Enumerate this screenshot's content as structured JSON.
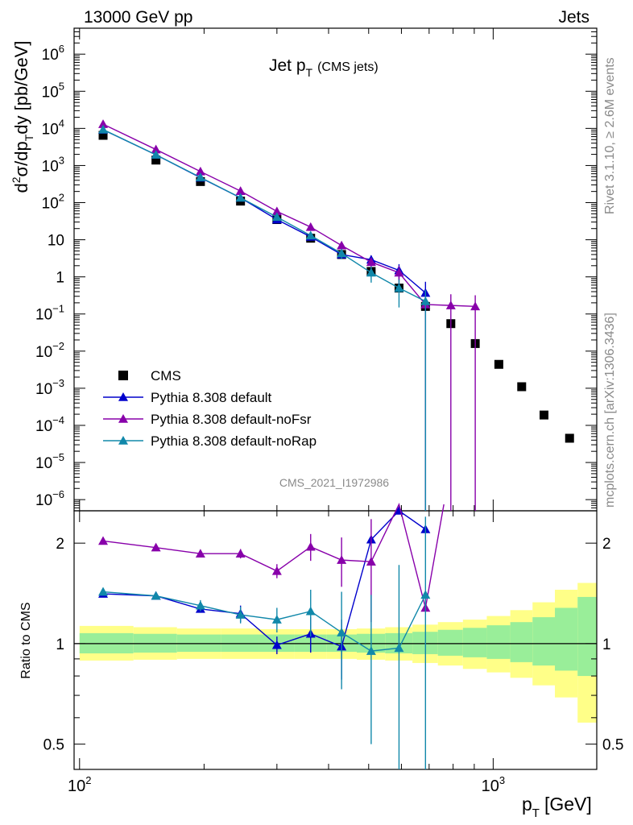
{
  "header": {
    "left": "13000 GeV pp",
    "right": "Jets"
  },
  "side_labels": {
    "top": "Rivet 3.1.10, ≥ 2.6M events",
    "bottom": "mcplots.cern.ch [arXiv:1306.3436]"
  },
  "chart_data": {
    "type": "scatter",
    "title": "Jet pT (CMS jets)",
    "title_main": "Jet p",
    "title_sub": "T",
    "title_suffix": "(CMS jets)",
    "watermark": "CMS_2021_I1972986",
    "x_scale": "log",
    "xlim": [
      97,
      1780
    ],
    "xlabel": "p",
    "xlabel_sub": "T",
    "xlabel_unit": "[GeV]",
    "x_tick_labels": [
      {
        "base": "10",
        "exp": "2",
        "value": 100
      },
      {
        "base": "10",
        "exp": "3",
        "value": 1000
      }
    ],
    "main_panel": {
      "y_scale": "log",
      "ylim": [
        5e-07,
        5000000.0
      ],
      "ylabel": "d²σ/dp_T dy [pb/GeV]",
      "y_tick_labels": [
        {
          "base": "10",
          "exp": "6",
          "value": 1000000.0
        },
        {
          "base": "10",
          "exp": "5",
          "value": 100000.0
        },
        {
          "base": "10",
          "exp": "4",
          "value": 10000.0
        },
        {
          "base": "10",
          "exp": "3",
          "value": 1000.0
        },
        {
          "base": "10",
          "exp": "2",
          "value": 100.0
        },
        {
          "base": "10",
          "exp": "",
          "value": 10
        },
        {
          "base": "1",
          "exp": "",
          "value": 1
        },
        {
          "base": "10",
          "exp": "−1",
          "value": 0.1
        },
        {
          "base": "10",
          "exp": "−2",
          "value": 0.01
        },
        {
          "base": "10",
          "exp": "−3",
          "value": 0.001
        },
        {
          "base": "10",
          "exp": "−4",
          "value": 0.0001
        },
        {
          "base": "10",
          "exp": "−5",
          "value": 1e-05
        },
        {
          "base": "10",
          "exp": "−6",
          "value": 1e-06
        }
      ],
      "legend_position": "bottom-left",
      "series": [
        {
          "name": "CMS",
          "color": "#000000",
          "marker": "square",
          "x": [
            114,
            153,
            196,
            245,
            300,
            362,
            430,
            507,
            592,
            686,
            790,
            905,
            1032,
            1172,
            1327,
            1530
          ],
          "y": [
            6500,
            1400,
            370,
            110,
            35,
            11,
            4.0,
            1.4,
            0.5,
            0.16,
            0.055,
            0.016,
            0.0044,
            0.0011,
            0.00019,
            4.5e-05
          ]
        },
        {
          "name": "Pythia 8.308 default",
          "color": "#0000cc",
          "marker": "triangle",
          "x": [
            114,
            153,
            196,
            245,
            300,
            362,
            430,
            507,
            592,
            686
          ],
          "y": [
            9200,
            1950,
            470,
            135,
            35,
            12,
            4.0,
            2.9,
            1.5,
            0.37
          ],
          "err": [
            null,
            null,
            null,
            null,
            null,
            null,
            0.8,
            0.9,
            0.7,
            0.37
          ]
        },
        {
          "name": "Pythia 8.308 default-noFsr",
          "color": "#8800aa",
          "marker": "triangle",
          "x": [
            114,
            153,
            196,
            245,
            300,
            362,
            430,
            507,
            592,
            686,
            790,
            905
          ],
          "y": [
            13000,
            2700,
            690,
            205,
            58,
            22,
            7.0,
            2.5,
            1.3,
            0.18,
            0.17,
            0.16
          ],
          "err": [
            null,
            null,
            null,
            null,
            null,
            null,
            null,
            0.8,
            0.7,
            0.18,
            0.17,
            0.16
          ]
        },
        {
          "name": "Pythia 8.308 default-noRap",
          "color": "#1188aa",
          "marker": "triangle",
          "x": [
            114,
            153,
            196,
            245,
            300,
            362,
            430,
            507,
            592,
            686
          ],
          "y": [
            9300,
            1950,
            480,
            135,
            41,
            13,
            4.3,
            1.3,
            0.5,
            0.22
          ],
          "err": [
            null,
            null,
            null,
            null,
            null,
            null,
            1.3,
            0.6,
            0.35,
            0.22
          ]
        }
      ]
    },
    "ratio_panel": {
      "ylabel": "Ratio to CMS",
      "y_scale": "log",
      "ylim": [
        0.42,
        2.5
      ],
      "y_tick_labels": [
        "2",
        "1",
        "0.5"
      ],
      "y_tick_values": [
        2,
        1,
        0.5
      ],
      "reference_line": 1,
      "band_bin_edges": [
        100,
        135,
        172,
        220,
        272,
        330,
        395,
        468,
        548,
        638,
        735,
        845,
        965,
        1100,
        1245,
        1410,
        1600,
        1780
      ],
      "band_inner": [
        [
          0.935,
          1.075
        ],
        [
          0.94,
          1.07
        ],
        [
          0.945,
          1.065
        ],
        [
          0.945,
          1.065
        ],
        [
          0.945,
          1.065
        ],
        [
          0.945,
          1.065
        ],
        [
          0.945,
          1.065
        ],
        [
          0.94,
          1.07
        ],
        [
          0.935,
          1.075
        ],
        [
          0.93,
          1.085
        ],
        [
          0.92,
          1.1
        ],
        [
          0.91,
          1.115
        ],
        [
          0.9,
          1.135
        ],
        [
          0.88,
          1.16
        ],
        [
          0.86,
          1.2
        ],
        [
          0.83,
          1.28
        ],
        [
          0.8,
          1.38
        ]
      ],
      "band_outer": [
        [
          0.89,
          1.13
        ],
        [
          0.895,
          1.12
        ],
        [
          0.9,
          1.11
        ],
        [
          0.9,
          1.11
        ],
        [
          0.9,
          1.105
        ],
        [
          0.9,
          1.105
        ],
        [
          0.9,
          1.105
        ],
        [
          0.895,
          1.11
        ],
        [
          0.89,
          1.12
        ],
        [
          0.875,
          1.14
        ],
        [
          0.86,
          1.16
        ],
        [
          0.84,
          1.18
        ],
        [
          0.82,
          1.21
        ],
        [
          0.79,
          1.26
        ],
        [
          0.75,
          1.33
        ],
        [
          0.69,
          1.45
        ],
        [
          0.58,
          1.52
        ]
      ],
      "series": [
        {
          "name": "Pythia 8.308 default",
          "color": "#0000cc",
          "x": [
            114,
            153,
            196,
            245,
            300,
            362,
            430,
            507,
            592,
            686
          ],
          "y": [
            1.41,
            1.39,
            1.27,
            1.23,
            0.99,
            1.07,
            0.98,
            2.05,
            2.5,
            2.2
          ],
          "err": [
            null,
            null,
            0.03,
            0.07,
            0.06,
            0.13,
            0.2,
            null,
            null,
            null
          ]
        },
        {
          "name": "Pythia 8.308 default-noFsr",
          "color": "#8800aa",
          "x": [
            114,
            153,
            196,
            245,
            300,
            362,
            430,
            507,
            592,
            686,
            760
          ],
          "y": [
            2.03,
            1.94,
            1.86,
            1.86,
            1.65,
            1.95,
            1.78,
            1.76,
            2.7,
            1.28,
            2.7
          ],
          "err": [
            null,
            null,
            null,
            0.06,
            0.08,
            0.18,
            0.3,
            0.6,
            null,
            null,
            null
          ]
        },
        {
          "name": "Pythia 8.308 default-noRap",
          "color": "#1188aa",
          "x": [
            114,
            153,
            196,
            245,
            300,
            362,
            430,
            507,
            592,
            686
          ],
          "y": [
            1.43,
            1.39,
            1.3,
            1.22,
            1.18,
            1.25,
            1.08,
            0.95,
            0.97,
            1.4
          ],
          "err": [
            null,
            null,
            0.05,
            0.07,
            0.1,
            0.2,
            0.35,
            0.45,
            0.75,
            1.0
          ]
        }
      ]
    }
  }
}
